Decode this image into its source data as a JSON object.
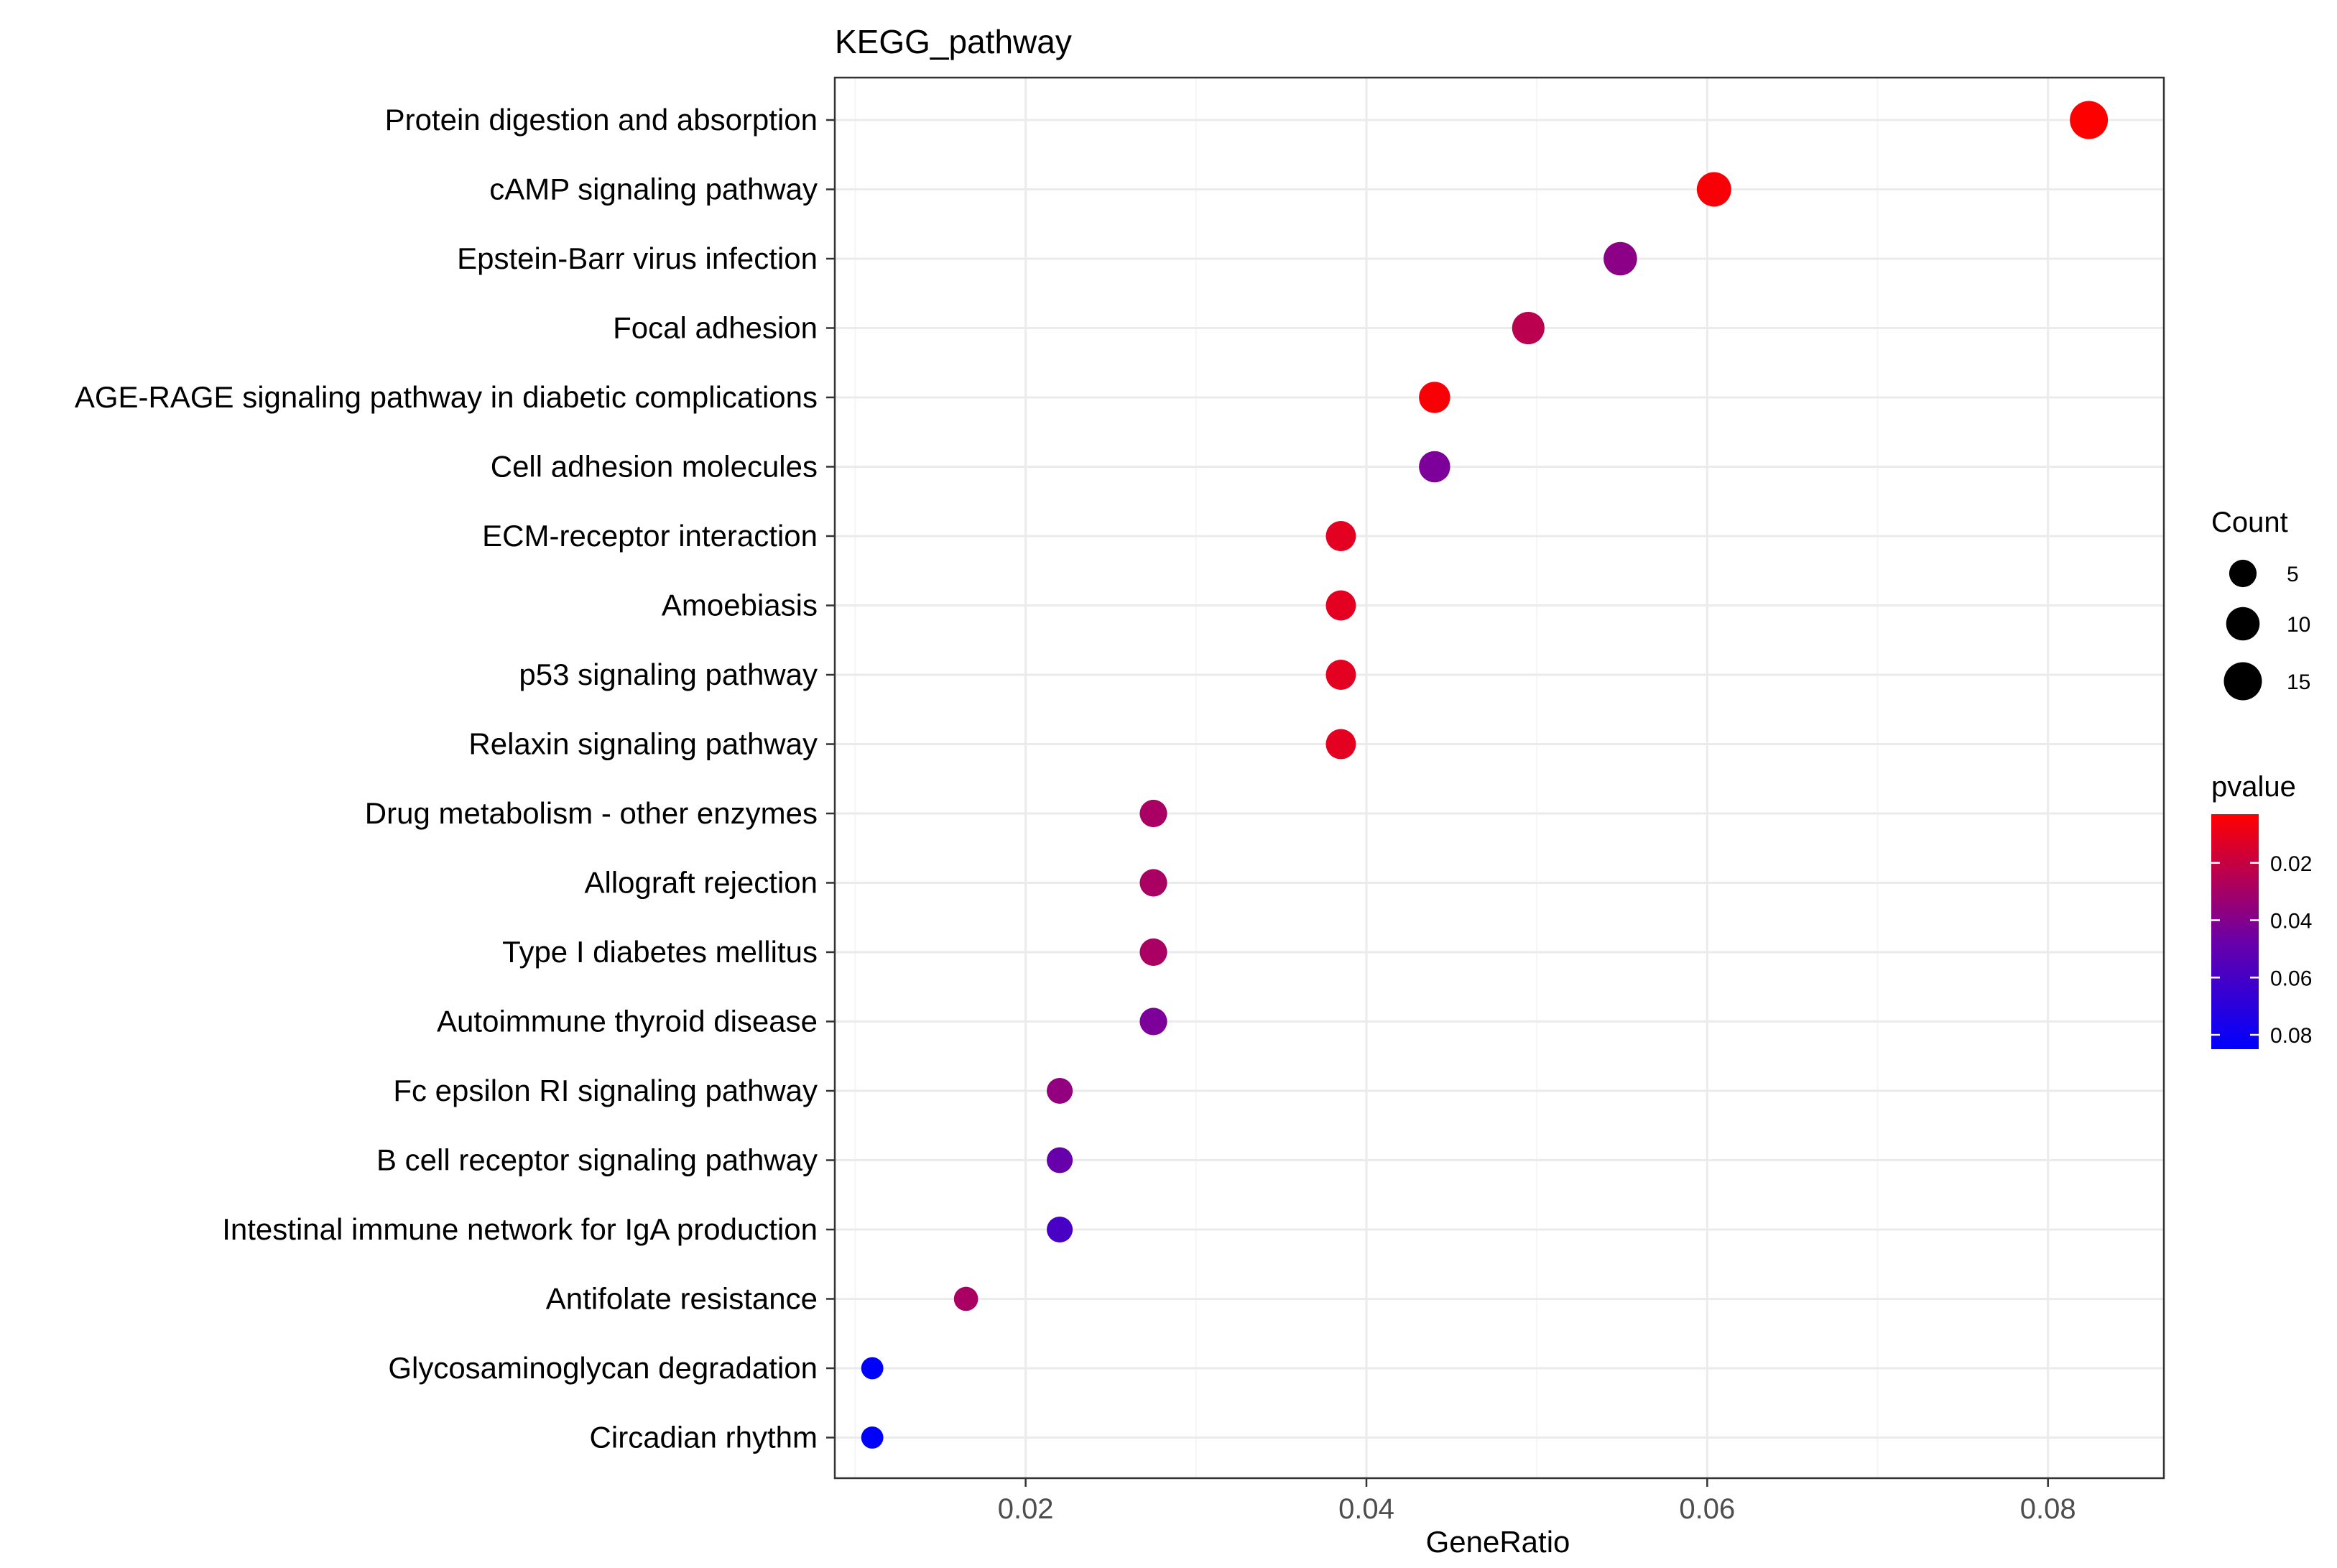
{
  "chart_data": {
    "type": "scatter",
    "title": "KEGG_pathway",
    "xlabel": "GeneRatio",
    "ylabel": "",
    "xlim": [
      0.0088,
      0.0868
    ],
    "x_ticks": [
      0.02,
      0.04,
      0.06,
      0.08
    ],
    "x_tick_labels": [
      "0.02",
      "0.04",
      "0.06",
      "0.08"
    ],
    "grid": true,
    "legend_position": "right",
    "points": [
      {
        "term": "Protein digestion and absorption",
        "gene_ratio": 0.0824,
        "count": 15,
        "pvalue": 0.003
      },
      {
        "term": "cAMP signaling pathway",
        "gene_ratio": 0.0604,
        "count": 11,
        "pvalue": 0.005
      },
      {
        "term": "Epstein-Barr virus infection",
        "gene_ratio": 0.0549,
        "count": 10,
        "pvalue": 0.04
      },
      {
        "term": "Focal adhesion",
        "gene_ratio": 0.0495,
        "count": 9,
        "pvalue": 0.025
      },
      {
        "term": "AGE-RAGE signaling pathway in diabetic complications",
        "gene_ratio": 0.044,
        "count": 8,
        "pvalue": 0.005
      },
      {
        "term": "Cell adhesion molecules",
        "gene_ratio": 0.044,
        "count": 8,
        "pvalue": 0.045
      },
      {
        "term": "ECM-receptor interaction",
        "gene_ratio": 0.0385,
        "count": 7,
        "pvalue": 0.012
      },
      {
        "term": "Amoebiasis",
        "gene_ratio": 0.0385,
        "count": 7,
        "pvalue": 0.012
      },
      {
        "term": "p53 signaling pathway",
        "gene_ratio": 0.0385,
        "count": 7,
        "pvalue": 0.012
      },
      {
        "term": "Relaxin signaling pathway",
        "gene_ratio": 0.0385,
        "count": 7,
        "pvalue": 0.012
      },
      {
        "term": "Drug metabolism - other enzymes",
        "gene_ratio": 0.0275,
        "count": 5,
        "pvalue": 0.03
      },
      {
        "term": "Allograft rejection",
        "gene_ratio": 0.0275,
        "count": 5,
        "pvalue": 0.03
      },
      {
        "term": "Type I diabetes mellitus",
        "gene_ratio": 0.0275,
        "count": 5,
        "pvalue": 0.03
      },
      {
        "term": "Autoimmune thyroid disease",
        "gene_ratio": 0.0275,
        "count": 5,
        "pvalue": 0.045
      },
      {
        "term": "Fc epsilon RI signaling pathway",
        "gene_ratio": 0.022,
        "count": 4,
        "pvalue": 0.038
      },
      {
        "term": "B cell receptor signaling pathway",
        "gene_ratio": 0.022,
        "count": 4,
        "pvalue": 0.052
      },
      {
        "term": "Intestinal immune network for IgA production",
        "gene_ratio": 0.022,
        "count": 4,
        "pvalue": 0.062
      },
      {
        "term": "Antifolate resistance",
        "gene_ratio": 0.0165,
        "count": 3,
        "pvalue": 0.03
      },
      {
        "term": "Glycosaminoglycan degradation",
        "gene_ratio": 0.011,
        "count": 2,
        "pvalue": 0.085
      },
      {
        "term": "Circadian rhythm",
        "gene_ratio": 0.011,
        "count": 2,
        "pvalue": 0.085
      }
    ],
    "size_legend": {
      "title": "Count",
      "values": [
        5,
        10,
        15
      ],
      "labels": [
        "5",
        "10",
        "15"
      ]
    },
    "color_legend": {
      "title": "pvalue",
      "min": 0.003,
      "max": 0.085,
      "ticks": [
        0.02,
        0.04,
        0.06,
        0.08
      ],
      "labels": [
        "0.02",
        "0.04",
        "0.06",
        "0.08"
      ],
      "low_color": "#ff0000",
      "high_color": "#0000ff"
    },
    "colors": {
      "background": "#ffffff",
      "panel_border": "#333333",
      "grid_major": "#ebebeb",
      "grid_minor": "#f5f5f5",
      "text": "#000000",
      "axis_text": "#4d4d4d",
      "point_size_legend": "#000000"
    }
  }
}
